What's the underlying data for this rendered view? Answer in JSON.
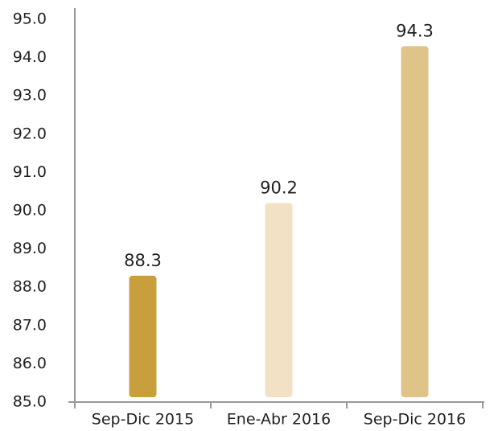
{
  "chart_data": {
    "type": "bar",
    "categories": [
      "Sep-Dic 2015",
      "Ene-Abr 2016",
      "Sep-Dic 2016"
    ],
    "values": [
      88.3,
      90.2,
      94.3
    ],
    "colors": [
      "#c89f3c",
      "#f2e1c5",
      "#dfc48a"
    ],
    "ylim": [
      85,
      95
    ],
    "yticks": [
      {
        "value": 85,
        "label": "85.0"
      },
      {
        "value": 86,
        "label": "86.0"
      },
      {
        "value": 87,
        "label": "87.0"
      },
      {
        "value": 88,
        "label": "88.0"
      },
      {
        "value": 89,
        "label": "89.0"
      },
      {
        "value": 90,
        "label": "90.0"
      },
      {
        "value": 91,
        "label": "91.0"
      },
      {
        "value": 92,
        "label": "92.0"
      },
      {
        "value": 93,
        "label": "93.0"
      },
      {
        "value": 94,
        "label": "94.0"
      },
      {
        "value": 95,
        "label": "95.0"
      }
    ],
    "grid": false
  }
}
